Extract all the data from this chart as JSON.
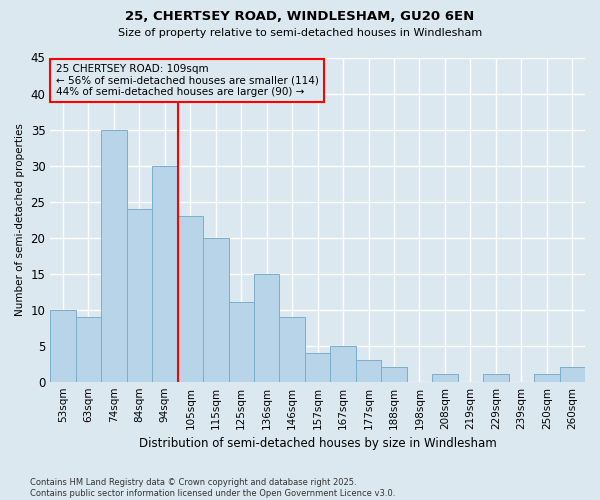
{
  "title1": "25, CHERTSEY ROAD, WINDLESHAM, GU20 6EN",
  "title2": "Size of property relative to semi-detached houses in Windlesham",
  "xlabel": "Distribution of semi-detached houses by size in Windlesham",
  "ylabel": "Number of semi-detached properties",
  "bins": [
    "53sqm",
    "63sqm",
    "74sqm",
    "84sqm",
    "94sqm",
    "105sqm",
    "115sqm",
    "125sqm",
    "136sqm",
    "146sqm",
    "157sqm",
    "167sqm",
    "177sqm",
    "188sqm",
    "198sqm",
    "208sqm",
    "219sqm",
    "229sqm",
    "239sqm",
    "250sqm",
    "260sqm"
  ],
  "values": [
    10,
    9,
    35,
    24,
    30,
    23,
    20,
    11,
    15,
    9,
    4,
    5,
    3,
    2,
    0,
    1,
    0,
    1,
    0,
    1,
    2
  ],
  "bar_color": "#b8d4e8",
  "bar_edge_color": "#7aaecb",
  "vline_x": 4.5,
  "annotation_title": "25 CHERTSEY ROAD: 109sqm",
  "annotation_line1": "← 56% of semi-detached houses are smaller (114)",
  "annotation_line2": "44% of semi-detached houses are larger (90) →",
  "vline_color": "red",
  "annotation_box_color": "red",
  "ylim": [
    0,
    45
  ],
  "yticks": [
    0,
    5,
    10,
    15,
    20,
    25,
    30,
    35,
    40,
    45
  ],
  "footer": "Contains HM Land Registry data © Crown copyright and database right 2025.\nContains public sector information licensed under the Open Government Licence v3.0.",
  "bg_color": "#dce8f0",
  "grid_color": "white"
}
